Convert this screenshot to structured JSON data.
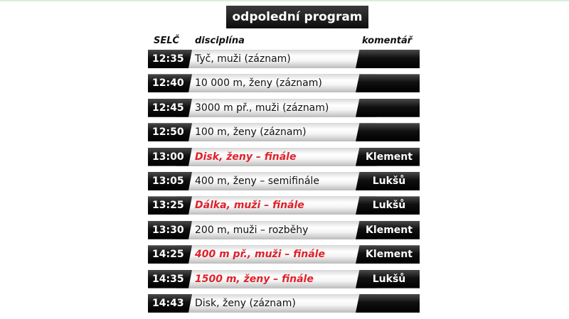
{
  "title": "odpolední program",
  "headers": {
    "time": "SELČ",
    "discipline": "disciplína",
    "comment": "komentář"
  },
  "colors": {
    "final": "#e0202a",
    "bar": "#111111"
  },
  "rows": [
    {
      "time": "12:35",
      "discipline": "Tyč, muži (záznam)",
      "final": false,
      "comment": ""
    },
    {
      "time": "12:40",
      "discipline": "10 000 m, ženy (záznam)",
      "final": false,
      "comment": ""
    },
    {
      "time": "12:45",
      "discipline": "3000 m př., muži (záznam)",
      "final": false,
      "comment": ""
    },
    {
      "time": "12:50",
      "discipline": "100 m, ženy (záznam)",
      "final": false,
      "comment": ""
    },
    {
      "time": "13:00",
      "discipline": "Disk, ženy – finále",
      "final": true,
      "comment": "Klement"
    },
    {
      "time": "13:05",
      "discipline": "400 m, ženy – semifinále",
      "final": false,
      "comment": "Lukšů"
    },
    {
      "time": "13:25",
      "discipline": "Dálka, muži – finále",
      "final": true,
      "comment": "Lukšů"
    },
    {
      "time": "13:30",
      "discipline": "200 m, muži – rozběhy",
      "final": false,
      "comment": "Klement"
    },
    {
      "time": "14:25",
      "discipline": "400 m př., muži – finále",
      "final": true,
      "comment": "Klement"
    },
    {
      "time": "14:35",
      "discipline": "1500 m, ženy – finále",
      "final": true,
      "comment": "Lukšů"
    },
    {
      "time": "14:43",
      "discipline": "Disk, ženy (záznam)",
      "final": false,
      "comment": ""
    }
  ]
}
